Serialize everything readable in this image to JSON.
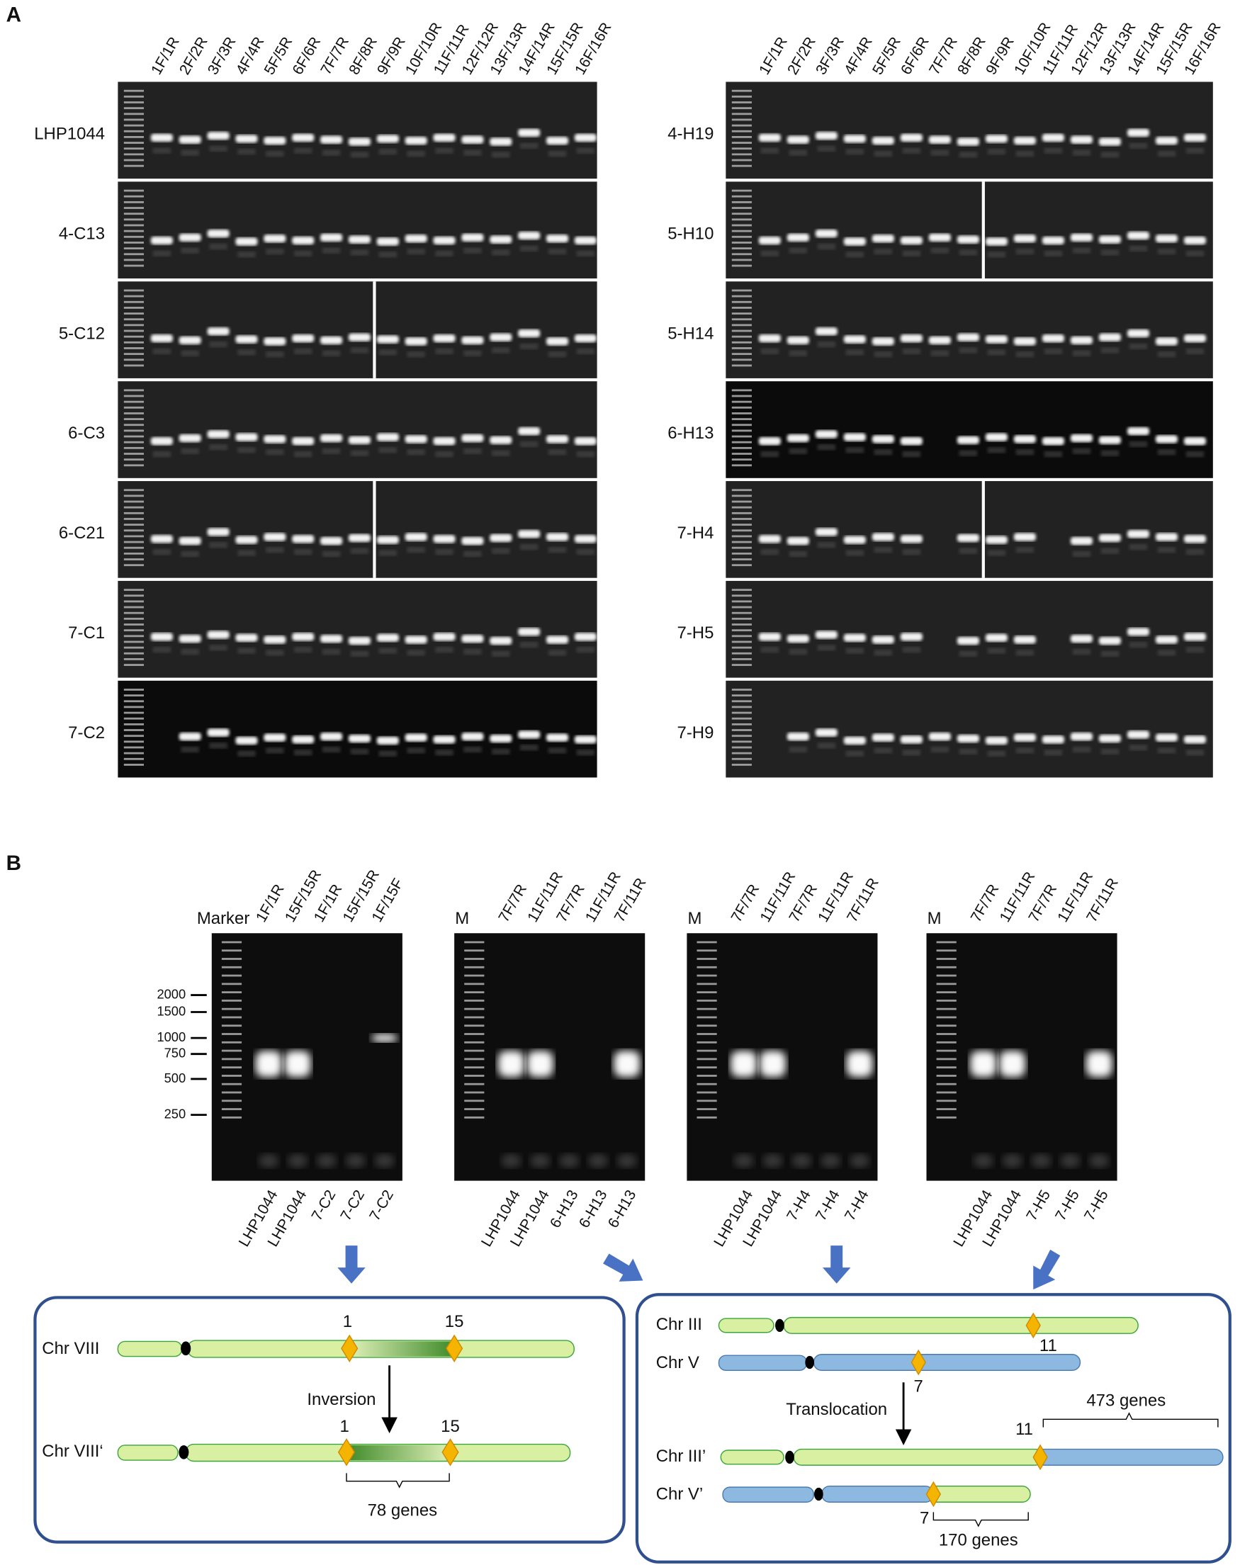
{
  "panel_a": {
    "label": "A",
    "left_gel": {
      "lanes": [
        "1F/1R",
        "2F/2R",
        "3F/3R",
        "4F/4R",
        "5F/5R",
        "6F/6R",
        "7F/7R",
        "8F/8R",
        "9F/9R",
        "10F/10R",
        "11F/11R",
        "12F/12R",
        "13F/13R",
        "14F/14R",
        "15F/15R",
        "16F/16R"
      ],
      "samples": [
        "LHP1044",
        "4-C13",
        "5-C12",
        "6-C3",
        "6-C21",
        "7-C1",
        "7-C2"
      ]
    },
    "right_gel": {
      "lanes": [
        "1F/1R",
        "2F/2R",
        "3F/3R",
        "4F/4R",
        "5F/5R",
        "6F/6R",
        "7F/7R",
        "8F/8R",
        "9F/9R",
        "10F/10R",
        "11F/11R",
        "12F/12R",
        "13F/13R",
        "14F/14R",
        "15F/15R",
        "16F/16R"
      ],
      "samples": [
        "4-H19",
        "5-H10",
        "5-H14",
        "6-H13",
        "7-H4",
        "7-H5",
        "7-H9"
      ]
    }
  },
  "panel_b": {
    "label": "B",
    "size_markers": [
      "2000",
      "1500",
      "1000",
      "750",
      "500",
      "250"
    ],
    "gels": [
      {
        "marker": "Marker",
        "lanes": [
          "1F/1R",
          "15F/15R",
          "1F/1R",
          "15F/15R",
          "1F/15F"
        ],
        "samples": [
          "LHP1044",
          "LHP1044",
          "7-C2",
          "7-C2",
          "7-C2"
        ]
      },
      {
        "marker": "M",
        "lanes": [
          "7F/7R",
          "11F/11R",
          "7F/7R",
          "11F/11R",
          "7F/11R"
        ],
        "samples": [
          "LHP1044",
          "LHP1044",
          "6-H13",
          "6-H13",
          "6-H13"
        ]
      },
      {
        "marker": "M",
        "lanes": [
          "7F/7R",
          "11F/11R",
          "7F/7R",
          "11F/11R",
          "7F/11R"
        ],
        "samples": [
          "LHP1044",
          "LHP1044",
          "7-H4",
          "7-H4",
          "7-H4"
        ]
      },
      {
        "marker": "M",
        "lanes": [
          "7F/7R",
          "11F/11R",
          "7F/7R",
          "11F/11R",
          "7F/11R"
        ],
        "samples": [
          "LHP1044",
          "LHP1044",
          "7-H5",
          "7-H5",
          "7-H5"
        ]
      }
    ]
  },
  "inversion_diagram": {
    "chromosome_before": "Chr VIII",
    "breakpoints_before": [
      "1",
      "15"
    ],
    "event": "Inversion",
    "chromosome_after": "Chr VIII‘",
    "breakpoints_after": [
      "1",
      "15"
    ],
    "gene_count": "78 genes"
  },
  "translocation_diagram": {
    "chr_iii": "Chr III",
    "chr_iii_breakpoint": "11",
    "chr_v": "Chr V",
    "chr_v_breakpoint": "7",
    "event": "Translocation",
    "chr_iii_prime": "Chr III’",
    "chr_iii_prime_breakpoint": "11",
    "chr_iii_prime_genes": "473 genes",
    "chr_v_prime": "Chr V’",
    "chr_v_prime_breakpoint": "7",
    "chr_v_prime_genes": "170 genes"
  }
}
